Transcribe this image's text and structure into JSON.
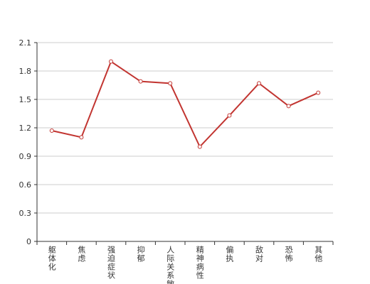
{
  "chart_data": {
    "type": "line",
    "categories": [
      "躯体化",
      "焦虑",
      "强迫症状",
      "抑郁",
      "人际关系敏感",
      "精神病性",
      "偏执",
      "敌对",
      "恐怖",
      "其他"
    ],
    "series": [
      {
        "color": "#c23531",
        "values": [
          1.17,
          1.1,
          1.9,
          1.69,
          1.67,
          1.0,
          1.33,
          1.67,
          1.43,
          1.57
        ]
      }
    ],
    "ylim": [
      0,
      2.1
    ],
    "yticks": [
      0,
      0.3,
      0.6,
      0.9,
      1.2,
      1.5,
      1.8,
      2.1
    ],
    "grid": true
  }
}
